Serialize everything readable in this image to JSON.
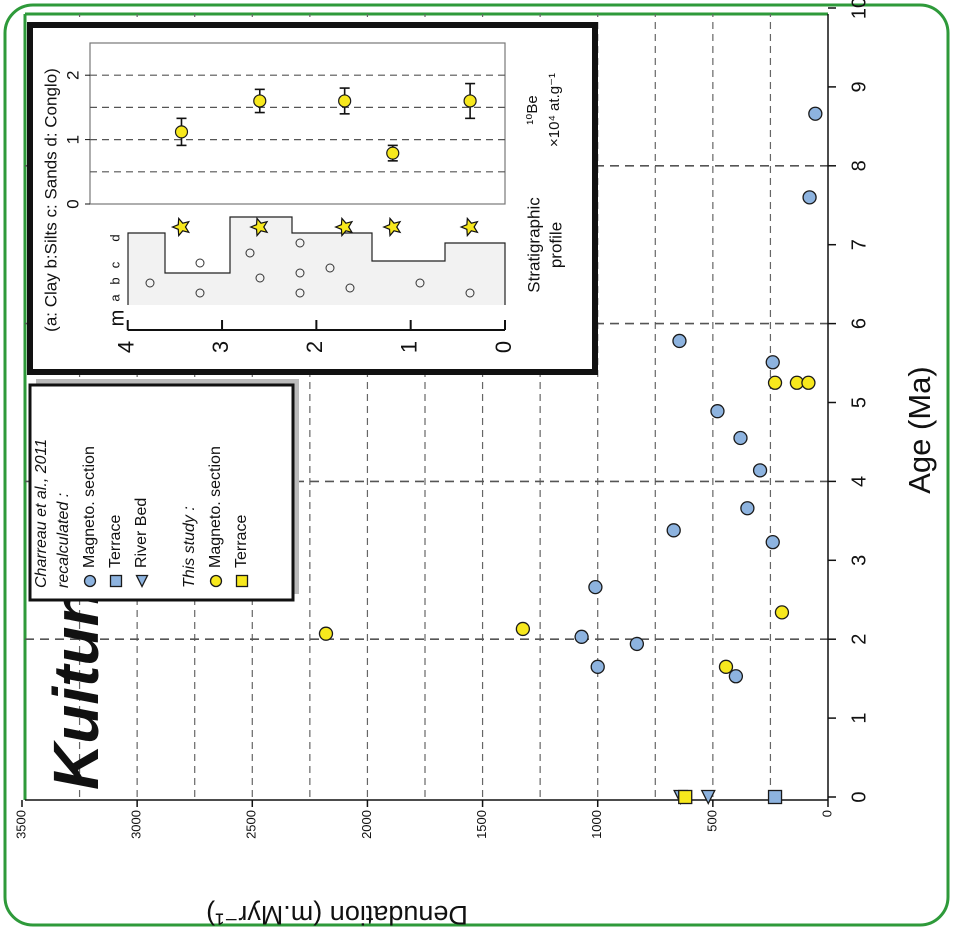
{
  "chart_data": [
    {
      "type": "scatter",
      "title": "Kuitun",
      "xlabel": "Age (Ma)",
      "ylabel": "Denudation (m.Myr⁻¹)",
      "xlim": [
        0,
        10
      ],
      "xticks": [
        0,
        1,
        2,
        3,
        4,
        5,
        6,
        7,
        8,
        9,
        10
      ],
      "ylim": [
        0,
        3500
      ],
      "yticks": [
        0,
        500,
        1000,
        1500,
        2000,
        2500,
        3000,
        3500
      ],
      "x_grid": [
        2,
        4,
        6,
        8
      ],
      "y_grid": [
        250,
        500,
        750,
        1000,
        1250,
        1500,
        1750,
        2000,
        2250,
        2500,
        2750,
        3000,
        3250
      ],
      "legend_groups": [
        [
          "Charreau et al., 2011",
          "recalculated :"
        ],
        [
          "This study :"
        ]
      ],
      "series": [
        {
          "name": "Magneto. section",
          "group": 0,
          "marker": "circle",
          "color": "#8db3df",
          "x": [
            1.53,
            1.65,
            1.94,
            2.03,
            2.66,
            3.23,
            3.38,
            3.66,
            4.14,
            4.55,
            4.89,
            5.51,
            5.78,
            7.6,
            8.66
          ],
          "values": [
            400,
            1000,
            830,
            1070,
            1010,
            240,
            670,
            350,
            295,
            380,
            480,
            240,
            645,
            80,
            55
          ]
        },
        {
          "name": "Terrace",
          "group": 0,
          "marker": "square",
          "color": "#8db3df",
          "x": [
            0
          ],
          "values": [
            230
          ]
        },
        {
          "name": "River Bed",
          "group": 0,
          "marker": "triangle",
          "color": "#8db3df",
          "x": [
            0,
            0
          ],
          "values": [
            640,
            520
          ]
        },
        {
          "name": "Magneto. section",
          "group": 1,
          "marker": "circle",
          "color": "#f7e81d",
          "x": [
            1.65,
            2.07,
            2.13,
            2.34,
            5.25,
            5.25,
            5.25
          ],
          "values": [
            443,
            2180,
            1325,
            200,
            230,
            135,
            85
          ]
        },
        {
          "name": "Terrace",
          "group": 1,
          "marker": "square",
          "color": "#f7e81d",
          "x": [
            0
          ],
          "values": [
            620
          ]
        }
      ]
    },
    {
      "type": "errorbar",
      "title": "(a: Clay  b:Silts  c: Sands  d: Conglo)",
      "xlabel": [
        "¹⁰Be",
        "×10⁴ at.g⁻¹"
      ],
      "depth_label": "m",
      "profile_label": [
        "Stratigraphic",
        "profile"
      ],
      "lithology_labels": [
        "a",
        "b",
        "c",
        "d"
      ],
      "xlim": [
        0,
        4.4
      ],
      "xticks": [
        0,
        1,
        2,
        3,
        4
      ],
      "ylim": [
        0,
        2.5
      ],
      "yticks": [
        0,
        1,
        2
      ],
      "y_grid": [
        0.5,
        1,
        1.5,
        2
      ],
      "series": [
        {
          "color": "#f7e81d",
          "x": [
            3.43,
            2.6,
            1.7,
            1.19,
            0.37
          ],
          "values": [
            1.12,
            1.6,
            1.6,
            0.79,
            1.6
          ],
          "errors": [
            0.21,
            0.18,
            0.2,
            0.12,
            0.27
          ]
        }
      ]
    }
  ]
}
